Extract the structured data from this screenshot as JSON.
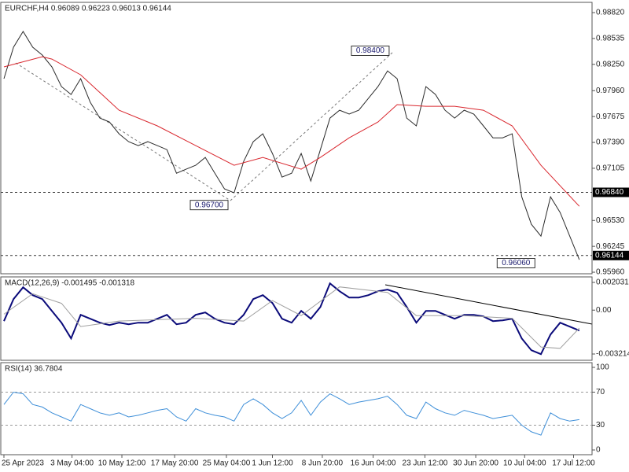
{
  "chart_data": [
    {
      "type": "line",
      "title": "EURCHF,H4  0.96089 0.96223 0.96013 0.96144",
      "xlim": [
        0,
        61
      ],
      "ylim": [
        0.95943,
        0.98933
      ],
      "yticks": [
        {
          "value": 0.9882,
          "label": "0.98820"
        },
        0.98535,
        {
          "value": 0.9825,
          "label": "0.98250"
        },
        {
          "value": 0.9796,
          "label": "0.97960"
        },
        0.97675,
        {
          "value": 0.9739,
          "label": "0.97390"
        },
        0.97105,
        {
          "value": 0.9653,
          "label": "0.96530"
        },
        0.96245,
        {
          "value": 0.9596,
          "label": "0.95960"
        }
      ],
      "levels": [
        {
          "value": 0.9684,
          "label": "0.96840"
        },
        {
          "value": 0.96144,
          "label": "0.96144"
        }
      ],
      "annotations": [
        {
          "value": 0.984,
          "label": "0.98400",
          "x": 38.2
        },
        {
          "value": 0.967,
          "label": "0.96700",
          "x": 21.4
        },
        {
          "value": 0.9606,
          "label": "0.96060",
          "x": 53.4
        }
      ],
      "series": [
        {
          "color": "#2b2b2b",
          "x": [
            0,
            1,
            2,
            3,
            4,
            5,
            6,
            7,
            8,
            9,
            10,
            11,
            12,
            13,
            14,
            15,
            16,
            17,
            18,
            19,
            20,
            21,
            22,
            23,
            24,
            25,
            26,
            27,
            28,
            29,
            30,
            31,
            32,
            33,
            34,
            35,
            36,
            37,
            38,
            39,
            40,
            41,
            42,
            43,
            44,
            45,
            46,
            47,
            48,
            49,
            50,
            51,
            52,
            53,
            54,
            55,
            56,
            57,
            58,
            59,
            60
          ],
          "values": [
            0.98092,
            0.98439,
            0.98612,
            0.98439,
            0.98352,
            0.98222,
            0.98005,
            0.97918,
            0.98092,
            0.97832,
            0.97658,
            0.97615,
            0.97485,
            0.97398,
            0.97355,
            0.97398,
            0.97355,
            0.97311,
            0.97051,
            0.97095,
            0.97138,
            0.97225,
            0.97051,
            0.96878,
            0.96835,
            0.97181,
            0.97398,
            0.97485,
            0.97268,
            0.97008,
            0.97051,
            0.97268,
            0.96965,
            0.97311,
            0.97658,
            0.97745,
            0.97702,
            0.97745,
            0.97875,
            0.98005,
            0.98178,
            0.98092,
            0.97658,
            0.97572,
            0.98005,
            0.97918,
            0.97745,
            0.97658,
            0.97745,
            0.97702,
            0.97572,
            0.97441,
            0.97441,
            0.97485,
            0.96791,
            0.96488,
            0.96358,
            0.96791,
            0.96618,
            0.96358,
            0.96098
          ]
        },
        {
          "color": "#d9272e",
          "x": [
            0,
            4,
            5,
            8,
            12,
            16,
            20,
            24,
            27,
            31,
            33,
            36,
            39,
            41,
            44,
            47,
            50,
            53,
            56,
            60
          ],
          "values": [
            0.98222,
            0.98334,
            0.98308,
            0.98135,
            0.97745,
            0.97572,
            0.97355,
            0.97138,
            0.97225,
            0.97095,
            0.97225,
            0.97441,
            0.97615,
            0.97806,
            0.97788,
            0.97788,
            0.97745,
            0.97572,
            0.97138,
            0.96687
          ]
        }
      ]
    },
    {
      "type": "line",
      "title": "MACD(12,26,9) -0.001495 -0.001318",
      "xlim": [
        0,
        61
      ],
      "ylim": [
        -0.003675,
        0.002434
      ],
      "yticks": [
        0.002031,
        {
          "value": 0,
          "label": "0.00"
        },
        -0.003214
      ],
      "series": [
        {
          "color": "#0b0b7a",
          "x": [
            0,
            1,
            2,
            3,
            4,
            5,
            6,
            7,
            8,
            9,
            10,
            11,
            12,
            13,
            14,
            15,
            16,
            17,
            18,
            19,
            20,
            21,
            22,
            23,
            24,
            25,
            26,
            27,
            28,
            29,
            30,
            31,
            32,
            33,
            34,
            35,
            36,
            37,
            38,
            39,
            40,
            41,
            42,
            43,
            44,
            45,
            46,
            47,
            48,
            49,
            50,
            51,
            52,
            53,
            54,
            55,
            56,
            57,
            58,
            59,
            60
          ],
          "values": [
            -0.000807,
            0.000807,
            0.001671,
            0.001095,
            0.000807,
            -5.8e-05,
            -0.000922,
            -0.002075,
            -0.000346,
            -0.000634,
            -0.000922,
            -0.001095,
            -0.000922,
            -0.001037,
            -0.000922,
            -0.000922,
            -0.000634,
            -0.000346,
            -0.001037,
            -0.000922,
            -0.000346,
            -0.000173,
            -0.000634,
            -0.000922,
            -0.001037,
            -0.000346,
            0.000807,
            0.001095,
            0.000519,
            -0.000634,
            -0.000922,
            -5.8e-05,
            -0.000634,
            0.000231,
            0.00196,
            0.001383,
            0.000922,
            0.000922,
            0.001095,
            0.001383,
            0.001499,
            0.001268,
            0.000231,
            -0.000922,
            -5.8e-05,
            -5.8e-05,
            -0.000346,
            -0.000634,
            -0.000346,
            -0.000346,
            -0.000461,
            -0.000807,
            -0.000749,
            -0.000634,
            -0.002075,
            -0.002939,
            -0.003228,
            -0.001787,
            -0.000922,
            -0.00121,
            -0.001495
          ]
        },
        {
          "color": "#a0a0a0",
          "x": [
            0,
            3,
            6,
            8,
            12,
            20,
            25,
            28,
            31,
            35,
            40,
            43,
            48,
            53,
            56,
            58,
            60
          ],
          "values": [
            -0.0003,
            0.0012,
            0.0005,
            -0.0012,
            -0.0008,
            -0.0006,
            -0.0008,
            0.0007,
            -0.0004,
            0.0017,
            0.0013,
            -0.0004,
            -0.0004,
            -0.0006,
            -0.0027,
            -0.0028,
            -0.001318
          ]
        }
      ]
    },
    {
      "type": "line",
      "title": "RSI(14) 36.7804",
      "xlim": [
        0,
        61
      ],
      "ylim": [
        -5.7,
        105.7
      ],
      "yticks": [
        0,
        30,
        70,
        100
      ],
      "dashed_levels": [
        30,
        70
      ],
      "xticks": [
        {
          "value": 0,
          "label": "25 Apr 2023"
        },
        {
          "value": 7.1,
          "label": "3 May 04:00"
        },
        {
          "value": 12.3,
          "label": "10 May 12:00"
        },
        {
          "value": 17.8,
          "label": "17 May 20:00"
        },
        {
          "value": 23.2,
          "label": "25 May 04:00"
        },
        {
          "value": 28,
          "label": "1 Jun 12:00"
        },
        {
          "value": 33.2,
          "label": "8 Jun 20:00"
        },
        {
          "value": 38.5,
          "label": "16 Jun 04:00"
        },
        {
          "value": 43.9,
          "label": "23 Jun 12:00"
        },
        {
          "value": 49.2,
          "label": "30 Jun 20:00"
        },
        {
          "value": 54.3,
          "label": "10 Jul 04:00"
        },
        {
          "value": 59.4,
          "label": "17 Jul 12:00"
        }
      ],
      "series": [
        {
          "color": "#3d8ed8",
          "x": [
            0,
            1,
            2,
            3,
            4,
            5,
            6,
            7,
            8,
            9,
            10,
            11,
            12,
            13,
            14,
            15,
            16,
            17,
            18,
            19,
            20,
            21,
            22,
            23,
            24,
            25,
            26,
            27,
            28,
            29,
            30,
            31,
            32,
            33,
            34,
            35,
            36,
            37,
            38,
            39,
            40,
            41,
            42,
            43,
            44,
            45,
            46,
            47,
            48,
            49,
            50,
            51,
            52,
            53,
            54,
            55,
            56,
            57,
            58,
            59,
            60
          ],
          "values": [
            55,
            70,
            68,
            55,
            52,
            45,
            40,
            35,
            55,
            50,
            45,
            42,
            45,
            40,
            42,
            45,
            48,
            50,
            40,
            35,
            50,
            45,
            42,
            40,
            35,
            55,
            62,
            55,
            45,
            38,
            45,
            60,
            42,
            58,
            68,
            62,
            55,
            58,
            60,
            62,
            65,
            55,
            42,
            38,
            58,
            50,
            45,
            42,
            48,
            45,
            42,
            38,
            40,
            42,
            30,
            22,
            18,
            45,
            38,
            35,
            36.7804
          ]
        }
      ]
    }
  ]
}
